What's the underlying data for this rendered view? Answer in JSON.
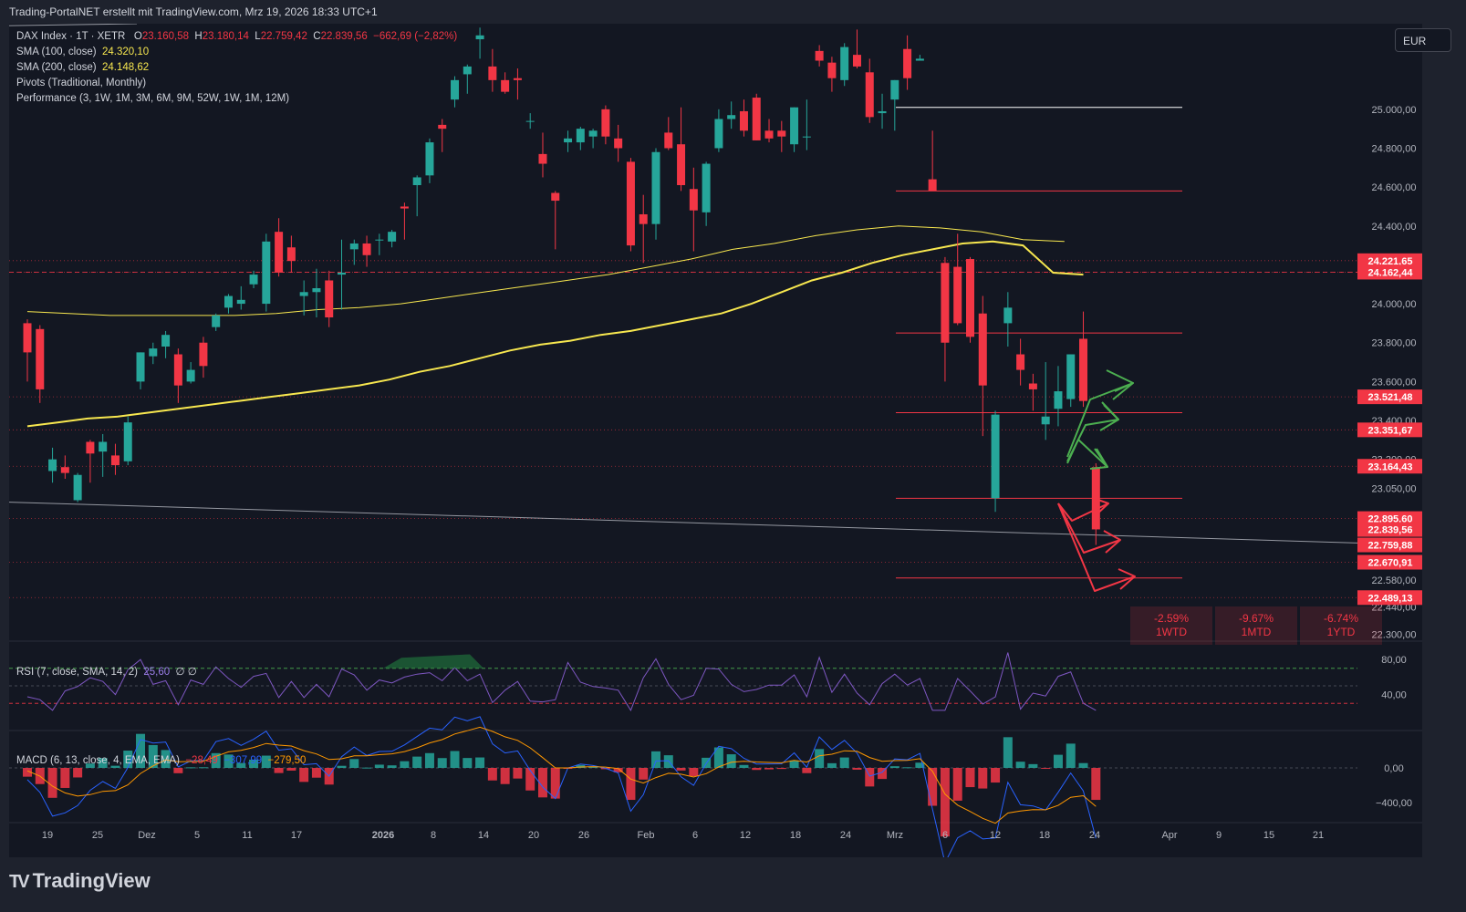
{
  "header": {
    "title": "Trading-PortalNET erstellt mit TradingView.com, Mrz 19, 2026 18:33 UTC+1"
  },
  "legend": {
    "symbol": "DAX Index · 1T · XETR",
    "o_label": "O",
    "o_value": "23.160,58",
    "h_label": "H",
    "h_value": "23.180,14",
    "l_label": "L",
    "l_value": "22.759,42",
    "c_label": "C",
    "c_value": "22.839,56",
    "change": "−662,69 (−2,82%)",
    "sma100_label": "SMA (100, close)",
    "sma100_value": "24.320,10",
    "sma200_label": "SMA (200, close)",
    "sma200_value": "24.148,62",
    "pivots_label": "Pivots (Traditional, Monthly)",
    "performance_label": "Performance (3, 1W, 1M, 3M, 6M, 9M, 52W, 1W, 1M, 12M)"
  },
  "currency": "EUR",
  "price_axis": [
    "25.000,00",
    "24.800,00",
    "24.600,00",
    "24.400,00",
    "24.000,00",
    "23.800,00",
    "23.600,00",
    "23.400,00",
    "23.200,00",
    "23.050,00",
    "22.580,00",
    "22.440,00",
    "22.300,00"
  ],
  "price_tags": [
    {
      "value": "24.221,65",
      "price": 24221.65
    },
    {
      "value": "24.162,44",
      "price": 24162.44
    },
    {
      "value": "23.521,48",
      "price": 23521.48
    },
    {
      "value": "23.351,67",
      "price": 23351.67
    },
    {
      "value": "23.164,43",
      "price": 23164.43
    },
    {
      "value": "22.895,60",
      "price": 22895.6
    },
    {
      "value": "22.839,56",
      "price": 22839.56
    },
    {
      "value": "22.759,88",
      "price": 22759.88
    },
    {
      "value": "22.670,91",
      "price": 22670.91
    },
    {
      "value": "22.489,13",
      "price": 22489.13
    }
  ],
  "performance": [
    {
      "pct": "-2.59%",
      "label": "1WTD"
    },
    {
      "pct": "-9.67%",
      "label": "1MTD"
    },
    {
      "pct": "-6.74%",
      "label": "1YTD"
    }
  ],
  "rsi": {
    "label": "RSI (7, close, SMA, 14, 2)",
    "value": "25,60",
    "extra": "∅ ∅",
    "axis": [
      "80,00",
      "40,00"
    ]
  },
  "macd": {
    "label": "MACD (6, 13, close, 4, EMA, EMA)",
    "hist": "−28,49",
    "macd": "−307,99",
    "signal": "−279,50",
    "axis": [
      "0,00",
      "−400,00"
    ]
  },
  "time_axis": [
    "19",
    "25",
    "Dez",
    "5",
    "11",
    "17",
    "2026",
    "8",
    "14",
    "20",
    "26",
    "Feb",
    "6",
    "12",
    "18",
    "24",
    "Mrz",
    "6",
    "12",
    "18",
    "24",
    "Apr",
    "9",
    "15",
    "21"
  ],
  "branding": "TradingView",
  "colors": {
    "up": "#26a69a",
    "down": "#f23645",
    "sma": "#f7e74f",
    "rsi": "#7e57c2",
    "macd": "#2962ff",
    "signal": "#ff9800",
    "bg": "#131722"
  },
  "chart_data": {
    "type": "candlestick",
    "title": "DAX Index · 1T · XETR",
    "currency": "EUR",
    "candles": [
      {
        "o": 23900,
        "h": 23920,
        "l": 23600,
        "c": 23750
      },
      {
        "o": 23870,
        "h": 23890,
        "l": 23490,
        "c": 23560
      },
      {
        "o": 23140,
        "h": 23260,
        "l": 23080,
        "c": 23200
      },
      {
        "o": 23160,
        "h": 23220,
        "l": 23100,
        "c": 23130
      },
      {
        "o": 22990,
        "h": 23130,
        "l": 22980,
        "c": 23120
      },
      {
        "o": 23290,
        "h": 23300,
        "l": 23080,
        "c": 23230
      },
      {
        "o": 23240,
        "h": 23330,
        "l": 23110,
        "c": 23290
      },
      {
        "o": 23220,
        "h": 23280,
        "l": 23120,
        "c": 23170
      },
      {
        "o": 23190,
        "h": 23420,
        "l": 23170,
        "c": 23390
      },
      {
        "o": 23600,
        "h": 23750,
        "l": 23560,
        "c": 23750
      },
      {
        "o": 23730,
        "h": 23800,
        "l": 23690,
        "c": 23770
      },
      {
        "o": 23780,
        "h": 23860,
        "l": 23720,
        "c": 23840
      },
      {
        "o": 23740,
        "h": 23770,
        "l": 23490,
        "c": 23580
      },
      {
        "o": 23600,
        "h": 23700,
        "l": 23590,
        "c": 23660
      },
      {
        "o": 23800,
        "h": 23830,
        "l": 23620,
        "c": 23680
      },
      {
        "o": 23880,
        "h": 23950,
        "l": 23860,
        "c": 23940
      },
      {
        "o": 23980,
        "h": 24050,
        "l": 23950,
        "c": 24040
      },
      {
        "o": 24000,
        "h": 24090,
        "l": 23970,
        "c": 24020
      },
      {
        "o": 24100,
        "h": 24170,
        "l": 24080,
        "c": 24150
      },
      {
        "o": 24000,
        "h": 24360,
        "l": 23960,
        "c": 24320
      },
      {
        "o": 24370,
        "h": 24440,
        "l": 24140,
        "c": 24160
      },
      {
        "o": 24290,
        "h": 24350,
        "l": 24160,
        "c": 24220
      },
      {
        "o": 24040,
        "h": 24120,
        "l": 23940,
        "c": 24060
      },
      {
        "o": 24060,
        "h": 24180,
        "l": 23930,
        "c": 24080
      },
      {
        "o": 24120,
        "h": 24170,
        "l": 23880,
        "c": 23930
      },
      {
        "o": 24150,
        "h": 24330,
        "l": 23970,
        "c": 24160
      },
      {
        "o": 24280,
        "h": 24330,
        "l": 24200,
        "c": 24310
      },
      {
        "o": 24310,
        "h": 24350,
        "l": 24190,
        "c": 24250
      },
      {
        "o": 24330,
        "h": 24360,
        "l": 24250,
        "c": 24330
      },
      {
        "o": 24320,
        "h": 24380,
        "l": 24290,
        "c": 24370
      },
      {
        "o": 24500,
        "h": 24520,
        "l": 24330,
        "c": 24490
      },
      {
        "o": 24610,
        "h": 24660,
        "l": 24450,
        "c": 24650
      },
      {
        "o": 24660,
        "h": 24850,
        "l": 24620,
        "c": 24830
      },
      {
        "o": 24920,
        "h": 24950,
        "l": 24780,
        "c": 24900
      },
      {
        "o": 25050,
        "h": 25170,
        "l": 25010,
        "c": 25150
      },
      {
        "o": 25180,
        "h": 25230,
        "l": 25080,
        "c": 25220
      },
      {
        "o": 25360,
        "h": 25420,
        "l": 25260,
        "c": 25380
      },
      {
        "o": 25220,
        "h": 25310,
        "l": 25090,
        "c": 25150
      },
      {
        "o": 25150,
        "h": 25190,
        "l": 25080,
        "c": 25090
      },
      {
        "o": 25160,
        "h": 25210,
        "l": 25050,
        "c": 25150
      },
      {
        "o": 24940,
        "h": 24980,
        "l": 24900,
        "c": 24940
      },
      {
        "o": 24770,
        "h": 24880,
        "l": 24650,
        "c": 24720
      },
      {
        "o": 24570,
        "h": 24580,
        "l": 24280,
        "c": 24530
      },
      {
        "o": 24830,
        "h": 24890,
        "l": 24780,
        "c": 24850
      },
      {
        "o": 24830,
        "h": 24910,
        "l": 24790,
        "c": 24900
      },
      {
        "o": 24860,
        "h": 24900,
        "l": 24800,
        "c": 24890
      },
      {
        "o": 25000,
        "h": 25020,
        "l": 24820,
        "c": 24860
      },
      {
        "o": 24850,
        "h": 24920,
        "l": 24730,
        "c": 24800
      },
      {
        "o": 24730,
        "h": 24750,
        "l": 24270,
        "c": 24300
      },
      {
        "o": 24460,
        "h": 24560,
        "l": 24210,
        "c": 24410
      },
      {
        "o": 24410,
        "h": 24800,
        "l": 24330,
        "c": 24780
      },
      {
        "o": 24880,
        "h": 24960,
        "l": 24790,
        "c": 24800
      },
      {
        "o": 24820,
        "h": 25010,
        "l": 24580,
        "c": 24610
      },
      {
        "o": 24590,
        "h": 24700,
        "l": 24270,
        "c": 24480
      },
      {
        "o": 24470,
        "h": 24730,
        "l": 24400,
        "c": 24720
      },
      {
        "o": 24800,
        "h": 25000,
        "l": 24780,
        "c": 24950
      },
      {
        "o": 24950,
        "h": 25040,
        "l": 24900,
        "c": 24970
      },
      {
        "o": 24990,
        "h": 25050,
        "l": 24860,
        "c": 24890
      },
      {
        "o": 25060,
        "h": 25080,
        "l": 24840,
        "c": 24840
      },
      {
        "o": 24890,
        "h": 24950,
        "l": 24830,
        "c": 24850
      },
      {
        "o": 24890,
        "h": 24940,
        "l": 24780,
        "c": 24860
      },
      {
        "o": 24820,
        "h": 25010,
        "l": 24780,
        "c": 25010
      },
      {
        "o": 24860,
        "h": 25050,
        "l": 24790,
        "c": 24860
      },
      {
        "o": 25300,
        "h": 25330,
        "l": 25220,
        "c": 25250
      },
      {
        "o": 25240,
        "h": 25270,
        "l": 25090,
        "c": 25160
      },
      {
        "o": 25150,
        "h": 25340,
        "l": 25120,
        "c": 25320
      },
      {
        "o": 25280,
        "h": 25410,
        "l": 25210,
        "c": 25220
      },
      {
        "o": 25190,
        "h": 25260,
        "l": 24930,
        "c": 24960
      },
      {
        "o": 24980,
        "h": 25080,
        "l": 24900,
        "c": 24990
      },
      {
        "o": 25050,
        "h": 25150,
        "l": 24890,
        "c": 25150
      },
      {
        "o": 25310,
        "h": 25380,
        "l": 25100,
        "c": 25160
      },
      {
        "o": 25250,
        "h": 25280,
        "l": 25250,
        "c": 25260
      },
      {
        "o": 24640,
        "h": 24890,
        "l": 24590,
        "c": 24580
      },
      {
        "o": 24210,
        "h": 24240,
        "l": 23600,
        "c": 23800
      },
      {
        "o": 24190,
        "h": 24360,
        "l": 23890,
        "c": 23900
      },
      {
        "o": 24230,
        "h": 24240,
        "l": 23800,
        "c": 23830
      },
      {
        "o": 23950,
        "h": 24040,
        "l": 23320,
        "c": 23580
      },
      {
        "o": 23000,
        "h": 23450,
        "l": 22930,
        "c": 23430
      },
      {
        "o": 23900,
        "h": 24060,
        "l": 23780,
        "c": 23980
      },
      {
        "o": 23740,
        "h": 23820,
        "l": 23580,
        "c": 23660
      },
      {
        "o": 23590,
        "h": 23640,
        "l": 23450,
        "c": 23560
      },
      {
        "o": 23380,
        "h": 23700,
        "l": 23300,
        "c": 23420
      },
      {
        "o": 23460,
        "h": 23680,
        "l": 23370,
        "c": 23550
      },
      {
        "o": 23510,
        "h": 23740,
        "l": 23470,
        "c": 23740
      },
      {
        "o": 23820,
        "h": 23960,
        "l": 23470,
        "c": 23500
      },
      {
        "o": 23160,
        "h": 23180,
        "l": 22760,
        "c": 22840
      }
    ],
    "sma100": [
      23370,
      23390,
      23410,
      23420,
      23440,
      23460,
      23480,
      23500,
      23520,
      23540,
      23560,
      23580,
      23610,
      23650,
      23680,
      23720,
      23760,
      23790,
      23810,
      23840,
      23860,
      23890,
      23920,
      23950,
      24000,
      24060,
      24120,
      24160,
      24210,
      24250,
      24280,
      24310,
      24320,
      24300,
      24160,
      24150
    ],
    "sma200": [
      23960,
      23950,
      23940,
      23940,
      23940,
      23940,
      23950,
      23970,
      23980,
      24000,
      24030,
      24060,
      24090,
      24120,
      24150,
      24190,
      24230,
      24280,
      24310,
      24350,
      24380,
      24400,
      24390,
      24370,
      24330,
      24320
    ],
    "y_range": [
      22270,
      25440
    ]
  }
}
